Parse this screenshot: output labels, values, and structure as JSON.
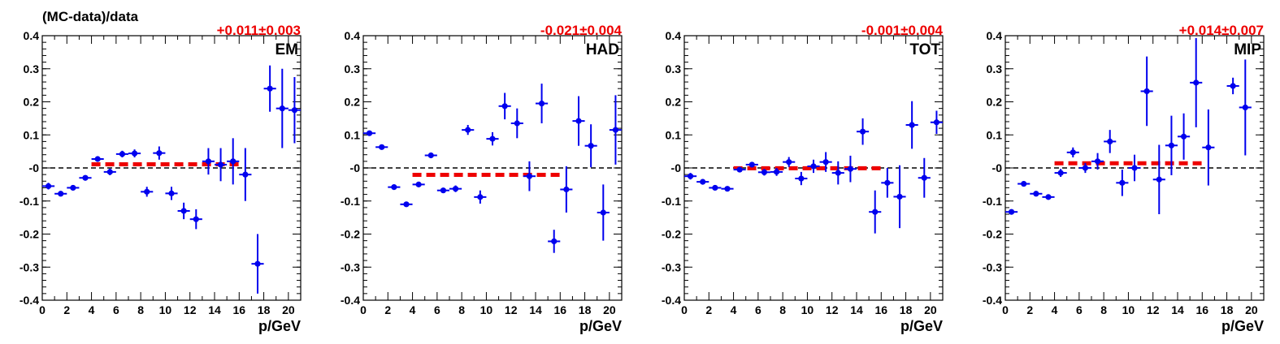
{
  "figure": {
    "ylabel": "(MC-data)/data"
  },
  "colors": {
    "points": "#0000ee",
    "fit": "#ee0000",
    "zero_line": "#000000",
    "axis": "#000000",
    "offset_text": "#ee0000"
  },
  "chart_data": [
    {
      "type": "scatter",
      "title": "EM",
      "offset_label": "+0.011±0.003",
      "xlabel": "p/GeV",
      "ylabel": "(MC-data)/data",
      "xlim": [
        0,
        21
      ],
      "ylim": [
        -0.4,
        0.4
      ],
      "x_ticks": [
        "0",
        "2",
        "4",
        "6",
        "8",
        "10",
        "12",
        "14",
        "16",
        "18",
        "20"
      ],
      "y_ticks": [
        "-0.4",
        "-0.3",
        "-0.2",
        "-0.1",
        "-0",
        "0.1",
        "0.2",
        "0.3",
        "0.4"
      ],
      "zero_line": 0,
      "fit": {
        "value": 0.011,
        "x_range": [
          4,
          16
        ]
      },
      "series": [
        {
          "x": [
            0.5,
            1.5,
            2.5,
            3.5,
            4.5,
            5.5,
            6.5,
            7.5,
            8.5,
            9.5,
            10.5,
            11.5,
            12.5,
            13.5,
            14.5,
            15.5,
            16.5,
            17.5,
            18.5,
            19.5,
            20.5
          ],
          "y": [
            -0.055,
            -0.078,
            -0.06,
            -0.03,
            0.027,
            -0.012,
            0.042,
            0.044,
            -0.072,
            0.045,
            -0.077,
            -0.13,
            -0.155,
            0.02,
            0.01,
            0.02,
            -0.02,
            -0.29,
            0.24,
            0.18,
            0.175
          ],
          "err": [
            0.01,
            0.008,
            0.008,
            0.008,
            0.008,
            0.01,
            0.01,
            0.012,
            0.015,
            0.02,
            0.02,
            0.025,
            0.03,
            0.04,
            0.05,
            0.07,
            0.08,
            0.09,
            0.07,
            0.12,
            0.1
          ]
        }
      ]
    },
    {
      "type": "scatter",
      "title": "HAD",
      "offset_label": "-0.021±0.004",
      "xlabel": "p/GeV",
      "ylabel": "(MC-data)/data",
      "xlim": [
        0,
        21
      ],
      "ylim": [
        -0.4,
        0.4
      ],
      "x_ticks": [
        "0",
        "2",
        "4",
        "6",
        "8",
        "10",
        "12",
        "14",
        "16",
        "18",
        "20"
      ],
      "y_ticks": [
        "-0.4",
        "-0.3",
        "-0.2",
        "-0.1",
        "-0",
        "0.1",
        "0.2",
        "0.3",
        "0.4"
      ],
      "zero_line": 0,
      "fit": {
        "value": -0.021,
        "x_range": [
          4,
          16
        ]
      },
      "series": [
        {
          "x": [
            0.5,
            1.5,
            2.5,
            3.5,
            4.5,
            5.5,
            6.5,
            7.5,
            8.5,
            9.5,
            10.5,
            11.5,
            12.5,
            13.5,
            14.5,
            15.5,
            16.5,
            17.5,
            18.5,
            19.5,
            20.5
          ],
          "y": [
            0.105,
            0.063,
            -0.058,
            -0.11,
            -0.05,
            0.038,
            -0.068,
            -0.063,
            0.115,
            -0.088,
            0.088,
            0.187,
            0.135,
            -0.025,
            0.195,
            -0.222,
            -0.065,
            0.142,
            0.067,
            -0.135,
            0.115
          ],
          "err": [
            0.008,
            0.006,
            0.006,
            0.006,
            0.006,
            0.006,
            0.008,
            0.01,
            0.015,
            0.02,
            0.02,
            0.04,
            0.045,
            0.045,
            0.06,
            0.035,
            0.07,
            0.075,
            0.065,
            0.085,
            0.105
          ]
        }
      ]
    },
    {
      "type": "scatter",
      "title": "TOT",
      "offset_label": "-0.001±0.004",
      "xlabel": "p/GeV",
      "ylabel": "(MC-data)/data",
      "xlim": [
        0,
        21
      ],
      "ylim": [
        -0.4,
        0.4
      ],
      "x_ticks": [
        "0",
        "2",
        "4",
        "6",
        "8",
        "10",
        "12",
        "14",
        "16",
        "18",
        "20"
      ],
      "y_ticks": [
        "-0.4",
        "-0.3",
        "-0.2",
        "-0.1",
        "-0",
        "0.1",
        "0.2",
        "0.3",
        "0.4"
      ],
      "zero_line": 0,
      "fit": {
        "value": -0.001,
        "x_range": [
          4,
          16
        ]
      },
      "series": [
        {
          "x": [
            0.5,
            1.5,
            2.5,
            3.5,
            4.5,
            5.5,
            6.5,
            7.5,
            8.5,
            9.5,
            10.5,
            11.5,
            12.5,
            13.5,
            14.5,
            15.5,
            16.5,
            17.5,
            18.5,
            19.5,
            20.5
          ],
          "y": [
            -0.025,
            -0.042,
            -0.06,
            -0.063,
            -0.005,
            0.01,
            -0.013,
            -0.012,
            0.018,
            -0.032,
            0.005,
            0.018,
            -0.015,
            -0.003,
            0.11,
            -0.133,
            -0.045,
            -0.087,
            0.13,
            -0.03,
            0.138
          ],
          "err": [
            0.01,
            0.008,
            0.006,
            0.006,
            0.008,
            0.008,
            0.01,
            0.012,
            0.015,
            0.02,
            0.02,
            0.03,
            0.035,
            0.04,
            0.04,
            0.065,
            0.045,
            0.095,
            0.072,
            0.06,
            0.035
          ]
        }
      ]
    },
    {
      "type": "scatter",
      "title": "MIP",
      "offset_label": "+0.014±0.007",
      "xlabel": "p/GeV",
      "ylabel": "(MC-data)/data",
      "xlim": [
        0,
        21
      ],
      "ylim": [
        -0.4,
        0.4
      ],
      "x_ticks": [
        "0",
        "2",
        "4",
        "6",
        "8",
        "10",
        "12",
        "14",
        "16",
        "18",
        "20"
      ],
      "y_ticks": [
        "-0.4",
        "-0.3",
        "-0.2",
        "-0.1",
        "-0",
        "0.1",
        "0.2",
        "0.3",
        "0.4"
      ],
      "zero_line": 0,
      "fit": {
        "value": 0.014,
        "x_range": [
          4,
          16
        ]
      },
      "series": [
        {
          "x": [
            0.5,
            1.5,
            2.5,
            3.5,
            4.5,
            5.5,
            6.5,
            7.5,
            8.5,
            9.5,
            10.5,
            11.5,
            12.5,
            13.5,
            14.5,
            15.5,
            16.5,
            18.5,
            19.5
          ],
          "y": [
            -0.133,
            -0.048,
            -0.078,
            -0.088,
            -0.015,
            0.047,
            0.0,
            0.02,
            0.08,
            -0.045,
            0.0,
            0.232,
            -0.035,
            0.068,
            0.095,
            0.258,
            0.062,
            0.248,
            0.183
          ],
          "err": [
            0.008,
            0.008,
            0.006,
            0.006,
            0.012,
            0.015,
            0.015,
            0.025,
            0.035,
            0.04,
            0.04,
            0.105,
            0.105,
            0.09,
            0.07,
            0.135,
            0.115,
            0.025,
            0.145
          ]
        }
      ]
    }
  ]
}
